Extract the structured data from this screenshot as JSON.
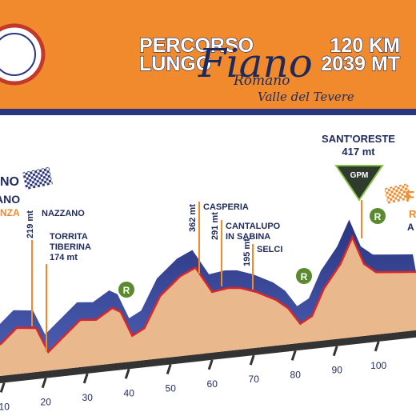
{
  "header": {
    "line1": "PERCORSO",
    "line2": "LUNGO",
    "distance": "120 KM",
    "climb": "2039 MT",
    "town": "Fiano",
    "town2": "Romano",
    "tagline": "Valle del Tevere"
  },
  "chart_data": {
    "type": "area",
    "x": [
      9,
      13,
      17.7,
      20.6,
      24.4,
      28.3,
      32.1,
      36,
      38,
      40.8,
      43.7,
      47.5,
      52.3,
      56,
      60,
      63.8,
      66.7,
      70.6,
      75.4,
      78.3,
      81.2,
      84,
      86.9,
      90.8,
      93.7,
      96.5,
      99.4,
      105,
      109
    ],
    "values": [
      130,
      193,
      183,
      78,
      137,
      197,
      190,
      232,
      212,
      107,
      133,
      260,
      333,
      362,
      253,
      262,
      257,
      233,
      190,
      150,
      80,
      107,
      217,
      310,
      417,
      300,
      260,
      250,
      243
    ],
    "xlim": [
      9,
      109
    ],
    "ylim": [
      0,
      600
    ],
    "xticks": [
      10,
      20,
      30,
      40,
      50,
      60,
      70,
      80,
      90,
      100
    ]
  },
  "labels": {
    "start": [
      "NO",
      "ANO",
      "NZA"
    ],
    "finish": [
      "F",
      "R",
      "A"
    ],
    "nazzano": "NAZZANO",
    "nazzano_alt": "219 mt",
    "torrita": [
      "TORRITA",
      "TIBERINA",
      "174 mt"
    ],
    "casperia": "CASPERIA",
    "casperia_alt": "362 mt",
    "cantalupo": [
      "CANTALUPO",
      "IN SABINA"
    ],
    "cantalupo_alt": "291 mt",
    "selci": "SELCI",
    "selci_alt": "195 mt",
    "santoreste": "SANT'ORESTE",
    "santoreste_alt": "417 mt",
    "gpm": "GPM",
    "refresh": [
      "R",
      "R",
      "R"
    ]
  }
}
